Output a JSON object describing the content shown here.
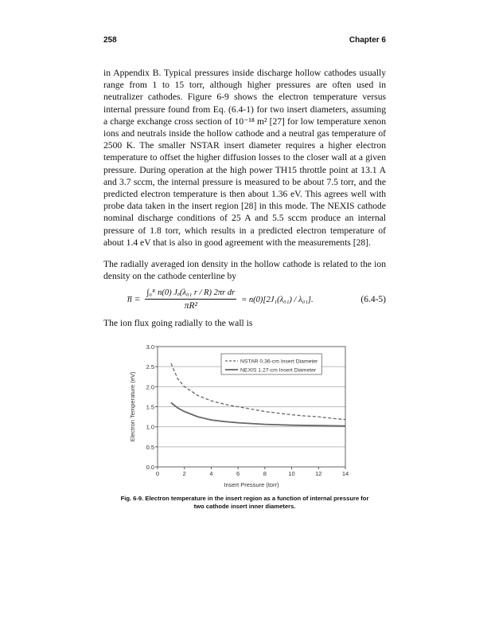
{
  "header": {
    "page_number": "258",
    "chapter": "Chapter 6"
  },
  "paragraphs": [
    "in Appendix B. Typical pressures inside discharge hollow cathodes usually range from 1 to 15 torr, although higher pressures are often used in neutralizer cathodes. Figure 6-9 shows the electron temperature versus internal pressure found from Eq. (6.4-1) for two insert diameters, assuming a charge exchange cross section of 10⁻¹⁸ m² [27] for low temperature xenon ions and neutrals inside the hollow cathode and a neutral gas temperature of 2500 K. The smaller NSTAR insert diameter requires a higher electron temperature to offset the higher diffusion losses to the closer wall at a given pressure. During operation at the high power TH15 throttle point at 13.1 A and 3.7 sccm, the internal pressure is measured to be about 7.5 torr, and the predicted electron temperature is then about 1.36 eV. This agrees well with probe data taken in the insert region [28] in this mode. The NEXIS cathode nominal discharge conditions of 25 A and 5.5 sccm produce an internal pressure of 1.8 torr, which results in a predicted electron temperature of about 1.4 eV that is also in good agreement with the measurements [28].",
    "The radially averaged ion density in the hollow cathode is related to the ion density on the cathode centerline by",
    "The ion flux going radially to the wall is"
  ],
  "equation": {
    "lhs": "n̅ =",
    "numerator": "∫₀ᴿ n(0) Jₒ(λ₀₁ r / R) 2πr dr",
    "denominator": "πR²",
    "rhs": "= n(0)[2J₁(λ₀₁) / λ₀₁].",
    "number": "(6.4-5)"
  },
  "chart_data": {
    "type": "line",
    "xlabel": "Insert Pressure (torr)",
    "ylabel": "Electron Temperature (eV)",
    "xlim": [
      0,
      14
    ],
    "ylim": [
      0,
      3
    ],
    "xticks": [
      "0",
      "2",
      "4",
      "6",
      "8",
      "10",
      "12",
      "14"
    ],
    "yticks": [
      "0.0",
      "0.5",
      "1.0",
      "1.5",
      "2.0",
      "2.5",
      "3.0"
    ],
    "grid": "horizontal",
    "legend": "top-right",
    "series": [
      {
        "name": "NSTAR 0.36-cm Insert Diameter",
        "style": "dashed",
        "color": "#666666",
        "x": [
          1,
          1.5,
          2,
          3,
          4,
          5,
          6,
          7,
          8,
          9,
          10,
          11,
          12,
          13,
          14
        ],
        "y": [
          2.58,
          2.2,
          2.0,
          1.78,
          1.65,
          1.56,
          1.5,
          1.44,
          1.38,
          1.34,
          1.3,
          1.27,
          1.25,
          1.21,
          1.18
        ]
      },
      {
        "name": "NEXIS 1.27-cm Insert Diameter",
        "style": "solid",
        "color": "#666666",
        "x": [
          1,
          1.5,
          2,
          3,
          4,
          5,
          6,
          7,
          8,
          9,
          10,
          12,
          14
        ],
        "y": [
          1.6,
          1.47,
          1.38,
          1.25,
          1.17,
          1.13,
          1.1,
          1.08,
          1.06,
          1.05,
          1.04,
          1.03,
          1.02
        ]
      }
    ]
  },
  "caption": "Fig. 6-9. Electron temperature in the insert region as a function of internal pressure for two cathode insert inner diameters."
}
